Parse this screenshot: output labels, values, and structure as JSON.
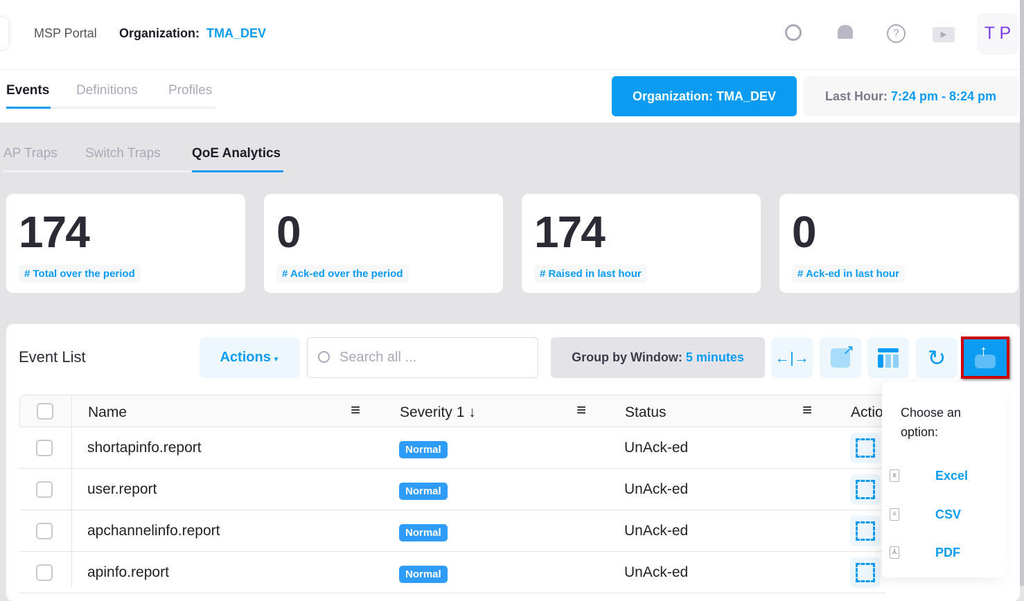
{
  "header": {
    "portal": "MSP Portal",
    "org_label": "Organization:",
    "org_value": "TMA_DEV",
    "avatar": "T P",
    "icons": [
      "search-icon",
      "bell-icon",
      "help-icon",
      "video-icon"
    ]
  },
  "main_tabs": [
    {
      "label": "Events",
      "active": true
    },
    {
      "label": "Definitions"
    },
    {
      "label": "Profiles"
    }
  ],
  "org_button": "Organization: TMA_DEV",
  "time_range": {
    "label": "Last Hour:",
    "value": "7:24 pm - 8:24 pm"
  },
  "sub_tabs": [
    {
      "label": "AP Traps"
    },
    {
      "label": "Switch Traps"
    },
    {
      "label": "QoE Analytics",
      "active": true
    }
  ],
  "stats": [
    {
      "value": "174",
      "label": "# Total over the period"
    },
    {
      "value": "0",
      "label": "# Ack-ed over the period"
    },
    {
      "value": "174",
      "label": "# Raised in last hour"
    },
    {
      "value": "0",
      "label": "# Ack-ed in last hour"
    }
  ],
  "event_list": {
    "title": "Event List",
    "actions": "Actions",
    "search_placeholder": "Search all ...",
    "group_label": "Group by Window:",
    "group_value": "5 minutes",
    "columns": [
      "Name",
      "Severity",
      "Status",
      "Actio"
    ],
    "sort_index": "1",
    "rows": [
      {
        "name": "shortapinfo.report",
        "severity": "Normal",
        "status": "UnAck-ed"
      },
      {
        "name": "user.report",
        "severity": "Normal",
        "status": "UnAck-ed"
      },
      {
        "name": "apchannelinfo.report",
        "severity": "Normal",
        "status": "UnAck-ed"
      },
      {
        "name": "apinfo.report",
        "severity": "Normal",
        "status": "UnAck-ed"
      }
    ]
  },
  "export_menu": {
    "title": "Choose an option:",
    "options": [
      {
        "label": "Excel",
        "icon": "excel-file-icon"
      },
      {
        "label": "CSV",
        "icon": "csv-file-icon"
      },
      {
        "label": "PDF",
        "icon": "pdf-file-icon"
      }
    ]
  },
  "colors": {
    "accent": "#0b9cf1",
    "highlight_border": "#cc0000",
    "avatar": "#7b3fe4"
  }
}
